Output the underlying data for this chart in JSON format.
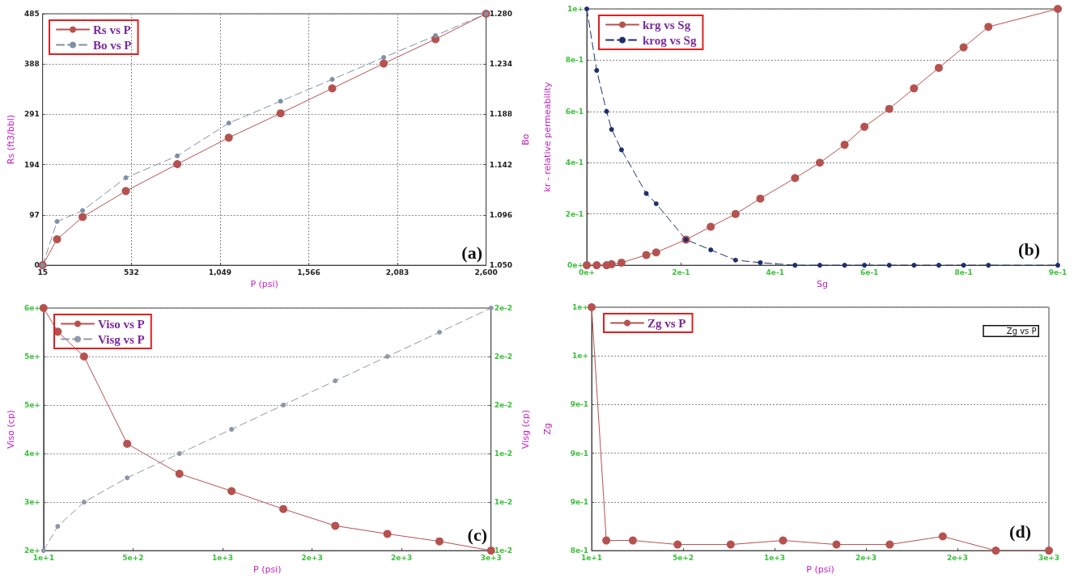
{
  "chart_data": [
    {
      "type": "line",
      "xlabel": "P (psi)",
      "ylabel": "Rs (ft3/bbl)",
      "y2label": "Bo",
      "annotations": [
        "(a)"
      ],
      "x": [
        15,
        99,
        248,
        500,
        800,
        1100,
        1402,
        1703,
        2003,
        2305,
        2600
      ],
      "xlim": [
        15,
        2600
      ],
      "xticks": [
        15,
        532,
        {
          "value": 1049,
          "label": "1,049"
        },
        {
          "value": 1566,
          "label": "1,566"
        },
        {
          "value": 2083,
          "label": "2,083"
        },
        {
          "value": 2600,
          "label": "2,600"
        }
      ],
      "ylim": [
        0,
        485
      ],
      "yticks": [
        0,
        97,
        194,
        291,
        388,
        485
      ],
      "y2lim": [
        1.05,
        1.28
      ],
      "y2ticks": [
        {
          "value": 1.05,
          "label": "1.050"
        },
        1.096,
        1.142,
        1.188,
        1.234,
        {
          "value": 1.28,
          "label": "1.280"
        }
      ],
      "series": [
        {
          "name": "Rs vs P",
          "color": "#b5524f",
          "line_style": "solid",
          "values": [
            0,
            50,
            93,
            143,
            195,
            246,
            293,
            341,
            389,
            436,
            485
          ]
        },
        {
          "name": "Bo vs P",
          "color": "#7f8fa8",
          "line_style": "dashed",
          "axis": "y2",
          "values": [
            1.05,
            1.09,
            1.1,
            1.13,
            1.15,
            1.18,
            1.2,
            1.22,
            1.24,
            1.26,
            1.28
          ]
        }
      ],
      "grid": true,
      "legend": "top left",
      "marker": "circle"
    },
    {
      "type": "line",
      "xlabel": "Sg",
      "ylabel": "kr - relative permeability",
      "annotations": [
        "(b)"
      ],
      "xlim": [
        0,
        0.95
      ],
      "xticks": [
        {
          "value": 0,
          "label": "0e+"
        },
        {
          "value": 0.19,
          "label": "2e-1"
        },
        {
          "value": 0.38,
          "label": "4e-1"
        },
        {
          "value": 0.57,
          "label": "6e-1"
        },
        {
          "value": 0.76,
          "label": "8e-1"
        },
        {
          "value": 0.95,
          "label": "9e-1"
        }
      ],
      "ylim": [
        0,
        1
      ],
      "yticks": [
        {
          "value": 0,
          "label": "0e+"
        },
        {
          "value": 0.2,
          "label": "2e-1"
        },
        {
          "value": 0.4,
          "label": "4e-1"
        },
        {
          "value": 0.6,
          "label": "6e-1"
        },
        {
          "value": 0.8,
          "label": "8e-1"
        },
        {
          "value": 1,
          "label": "1e+"
        }
      ],
      "x": [
        0,
        0.02,
        0.04,
        0.05,
        0.07,
        0.12,
        0.14,
        0.2,
        0.25,
        0.3,
        0.35,
        0.42,
        0.47,
        0.52,
        0.56,
        0.61,
        0.66,
        0.71,
        0.76,
        0.81,
        0.95
      ],
      "series": [
        {
          "name": "krg vs Sg",
          "color": "#b5524f",
          "line_style": "solid",
          "values": [
            0,
            0,
            0,
            0.004,
            0.01,
            0.04,
            0.05,
            0.1,
            0.15,
            0.2,
            0.26,
            0.34,
            0.4,
            0.47,
            0.54,
            0.61,
            0.69,
            0.77,
            0.85,
            0.93,
            1
          ]
        },
        {
          "name": "krog vs Sg",
          "color": "#1f2f6f",
          "line_style": "dashed",
          "values": [
            1,
            0.76,
            0.6,
            0.53,
            0.45,
            0.28,
            0.24,
            0.1,
            0.06,
            0.02,
            0.01,
            0,
            0,
            0,
            0,
            0,
            0,
            0,
            0,
            0,
            0
          ]
        }
      ],
      "grid": "y",
      "legend": "top left",
      "marker": "circle"
    },
    {
      "type": "line",
      "xlabel": "P (psi)",
      "ylabel": "Viso (cp)",
      "y2label": "Visg (cp)",
      "annotations": [
        "(c)"
      ],
      "x": [
        15,
        97,
        249,
        498,
        800,
        1101,
        1400,
        1700,
        2001,
        2302,
        2600
      ],
      "xlim": [
        15,
        2600
      ],
      "xticks": [
        {
          "value": 15,
          "label": "1e+1"
        },
        {
          "value": 532,
          "label": "5e+2"
        },
        {
          "value": 1049,
          "label": "1e+3"
        },
        {
          "value": 1566,
          "label": "2e+3"
        },
        {
          "value": 2083,
          "label": "2e+3"
        },
        {
          "value": 2600,
          "label": "3e+3"
        }
      ],
      "ylim": [
        2.0,
        6.2
      ],
      "yticks": [
        {
          "value": 2.0,
          "label": "2e+"
        },
        {
          "value": 2.84,
          "label": "3e+"
        },
        {
          "value": 3.68,
          "label": "4e+"
        },
        {
          "value": 4.52,
          "label": "5e+"
        },
        {
          "value": 5.36,
          "label": "5e+"
        },
        {
          "value": 6.2,
          "label": "6e+"
        }
      ],
      "y2lim": [
        0.01,
        0.02
      ],
      "y2ticks": [
        {
          "value": 0.01,
          "label": "1e-2"
        },
        {
          "value": 0.012,
          "label": "1e-2"
        },
        {
          "value": 0.014,
          "label": "1e-2"
        },
        {
          "value": 0.016,
          "label": "2e-2"
        },
        {
          "value": 0.018,
          "label": "2e-2"
        },
        {
          "value": 0.02,
          "label": "2e-2"
        }
      ],
      "series": [
        {
          "name": "Viso vs P",
          "color": "#b5524f",
          "line_style": "solid",
          "values": [
            6.2,
            5.79,
            5.36,
            3.85,
            3.33,
            3.03,
            2.72,
            2.43,
            2.29,
            2.16,
            2.0
          ]
        },
        {
          "name": "Visg vs P",
          "color": "#8f97aa",
          "line_style": "dashed",
          "axis": "y2",
          "values": [
            0.01,
            0.011,
            0.012,
            0.013,
            0.014,
            0.015,
            0.016,
            0.017,
            0.018,
            0.019,
            0.02
          ]
        }
      ],
      "grid": "y",
      "legend": "top left",
      "marker": "circle"
    },
    {
      "type": "line",
      "xlabel": "P (psi)",
      "ylabel": "Zg",
      "annotations": [
        "(d)",
        "Zg vs P"
      ],
      "x": [
        15,
        98,
        248,
        501,
        801,
        1097,
        1399,
        1700,
        2000,
        2300,
        2600
      ],
      "xlim": [
        15,
        2600
      ],
      "xticks": [
        {
          "value": 15,
          "label": "1e+1"
        },
        {
          "value": 532,
          "label": "5e+2"
        },
        {
          "value": 1049,
          "label": "1e+3"
        },
        {
          "value": 1566,
          "label": "2e+3"
        },
        {
          "value": 2083,
          "label": "2e+3"
        },
        {
          "value": 2600,
          "label": "3e+3"
        }
      ],
      "ylim": [
        0.805,
        1.045
      ],
      "yticks": [
        {
          "value": 0.805,
          "label": "8e-1"
        },
        {
          "value": 0.853,
          "label": "9e-1"
        },
        {
          "value": 0.901,
          "label": "9e-1"
        },
        {
          "value": 0.949,
          "label": "9e-1"
        },
        {
          "value": 0.997,
          "label": "1e+"
        },
        {
          "value": 1.045,
          "label": "1e+"
        }
      ],
      "series": [
        {
          "name": "Zg vs P",
          "color": "#b5524f",
          "line_style": "solid",
          "values": [
            1.045,
            0.815,
            0.815,
            0.811,
            0.811,
            0.815,
            0.811,
            0.811,
            0.819,
            0.805,
            0.805
          ]
        }
      ],
      "grid": "y",
      "legend": "top left",
      "marker": "circle"
    }
  ]
}
